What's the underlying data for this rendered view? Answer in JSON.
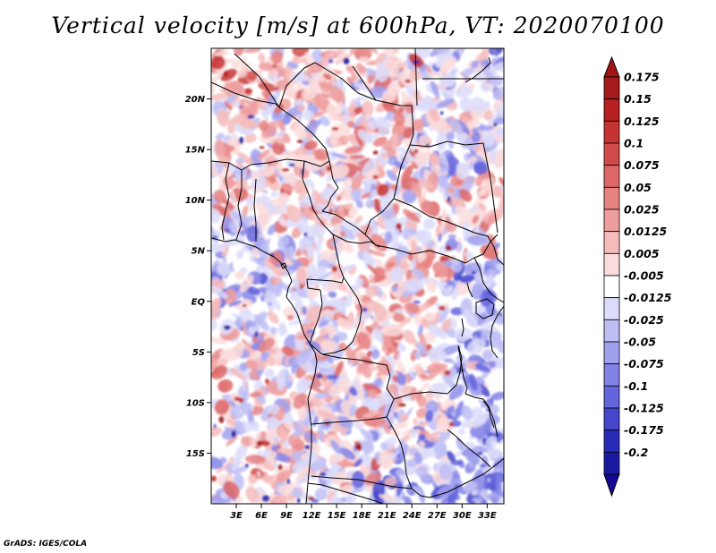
{
  "title": "Vertical velocity [m/s] at 600hPa, VT: 2020070100",
  "credit": "GrADS: IGES/COLA",
  "map": {
    "lon_range": [
      0,
      35
    ],
    "lat_range": [
      -20,
      25
    ],
    "lat_ticks": [
      {
        "value": 20,
        "label": "20N"
      },
      {
        "value": 15,
        "label": "15N"
      },
      {
        "value": 10,
        "label": "10N"
      },
      {
        "value": 5,
        "label": "5N"
      },
      {
        "value": 0,
        "label": "EQ"
      },
      {
        "value": -5,
        "label": "5S"
      },
      {
        "value": -10,
        "label": "10S"
      },
      {
        "value": -15,
        "label": "15S"
      }
    ],
    "lon_ticks": [
      {
        "value": 3,
        "label": "3E"
      },
      {
        "value": 6,
        "label": "6E"
      },
      {
        "value": 9,
        "label": "9E"
      },
      {
        "value": 12,
        "label": "12E"
      },
      {
        "value": 15,
        "label": "15E"
      },
      {
        "value": 18,
        "label": "18E"
      },
      {
        "value": 21,
        "label": "21E"
      },
      {
        "value": 24,
        "label": "24E"
      },
      {
        "value": 27,
        "label": "27E"
      },
      {
        "value": 30,
        "label": "30E"
      },
      {
        "value": 33,
        "label": "33E"
      }
    ]
  },
  "colorbar": {
    "levels": [
      {
        "label": "0.175",
        "color": "#a51a1a"
      },
      {
        "label": "0.15",
        "color": "#b62020"
      },
      {
        "label": "0.125",
        "color": "#c53333"
      },
      {
        "label": "0.1",
        "color": "#d24b4b"
      },
      {
        "label": "0.075",
        "color": "#dd6666"
      },
      {
        "label": "0.05",
        "color": "#e68282"
      },
      {
        "label": "0.025",
        "color": "#ef9e9e"
      },
      {
        "label": "0.0125",
        "color": "#f6bcbc"
      },
      {
        "label": "0.005",
        "color": "#fbdcdc"
      },
      {
        "label": "-0.005",
        "color": "#ffffff"
      },
      {
        "label": "-0.0125",
        "color": "#dcdcfa"
      },
      {
        "label": "-0.025",
        "color": "#bebef5"
      },
      {
        "label": "-0.05",
        "color": "#a0a0ee"
      },
      {
        "label": "-0.075",
        "color": "#8282e6"
      },
      {
        "label": "-0.1",
        "color": "#6464dc"
      },
      {
        "label": "-0.125",
        "color": "#4646cc"
      },
      {
        "label": "-0.175",
        "color": "#2a2ab8"
      },
      {
        "label": "-0.2",
        "color": "#1a1aa0"
      }
    ],
    "top_color": "#a01414",
    "bottom_color": "#140a96"
  }
}
